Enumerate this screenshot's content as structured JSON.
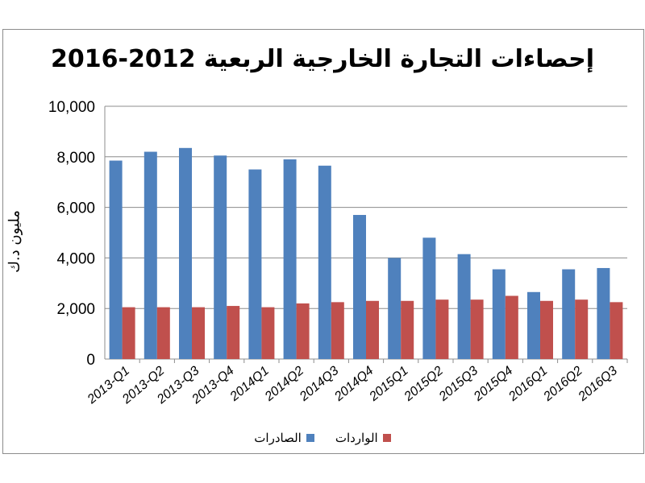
{
  "chart_data": {
    "type": "bar",
    "title": "إحصاءات التجارة الخارجية الربعية 2012-2016",
    "ylabel": "مليون د.ك",
    "xlabel": "",
    "ylim": [
      0,
      10000
    ],
    "yticks": [
      "0",
      "2,000",
      "4,000",
      "6,000",
      "8,000",
      "10,000"
    ],
    "ytick_values": [
      0,
      2000,
      4000,
      6000,
      8000,
      10000
    ],
    "grid": true,
    "legend_position": "bottom",
    "categories": [
      "2013-Q1",
      "2013-Q2",
      "2013-Q3",
      "2013-Q4",
      "2014Q1",
      "2014Q2",
      "2014Q3",
      "2014Q4",
      "2015Q1",
      "2015Q2",
      "2015Q3",
      "2015Q4",
      "2016Q1",
      "2016Q2",
      "2016Q3"
    ],
    "series": [
      {
        "name": "الصادرات",
        "color": "#4f81bd",
        "values": [
          7850,
          8200,
          8350,
          8050,
          7500,
          7900,
          7650,
          5700,
          4000,
          4800,
          4150,
          3550,
          2650,
          3550,
          3600
        ]
      },
      {
        "name": "الواردات",
        "color": "#c0504d",
        "values": [
          2050,
          2050,
          2050,
          2100,
          2050,
          2200,
          2250,
          2300,
          2300,
          2350,
          2350,
          2500,
          2300,
          2350,
          2250
        ]
      }
    ]
  }
}
